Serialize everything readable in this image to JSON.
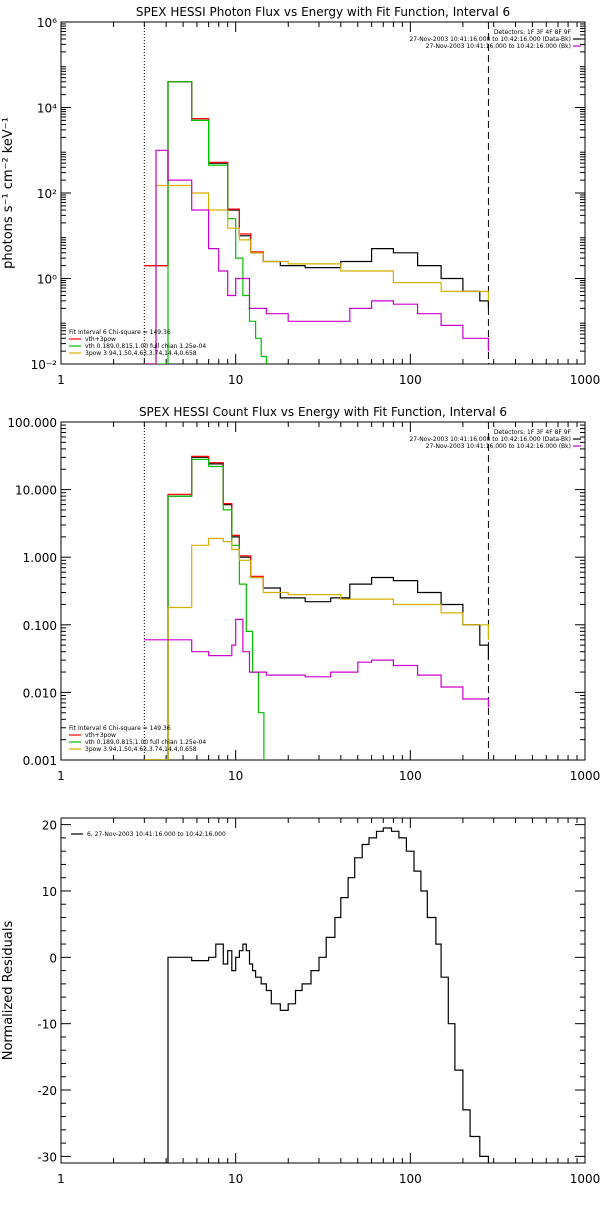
{
  "chart_data": [
    {
      "type": "line",
      "title": "SPEX HESSI Photon Flux vs Energy with Fit Function, Interval 6",
      "ylabel": "photons s⁻¹ cm⁻² keV⁻¹",
      "xlabel": "",
      "xscale": "log",
      "yscale": "log",
      "xlim": [
        1,
        1000
      ],
      "ylim": [
        0.01,
        1000000
      ],
      "xtick_labels": [
        "1",
        "10",
        "100",
        "1000"
      ],
      "ytick_labels": [
        "10⁻²",
        "10⁰",
        "10²",
        "10⁴",
        "10⁶"
      ],
      "vlines": [
        {
          "x": 3,
          "style": "dotted"
        },
        {
          "x": 280,
          "style": "dashed"
        }
      ],
      "legend_top_right": [
        "Detectors: 1F 3F 4F 8F 9F",
        "27-Nov-2003 10:41:16.000 to 10:42:16.000 (Data-Bk)",
        "27-Nov-2003 10:41:16.000 to 10:42:16.000 (Bk)"
      ],
      "legend_bottom_left": {
        "header": "Fit Interval 6   Chi-square = 149.36",
        "entries": [
          "vth+3pow",
          "vth 0.189,0.815,1.00  full chian 1.25e-04",
          "3pow 3.94,1.50,4.63,3.74,14.4,0.658"
        ]
      },
      "series": [
        {
          "role": "data-bk",
          "color": "#000000",
          "x": [
            3.0,
            4.1,
            5.6,
            7.0,
            9.0,
            10.5,
            12.2,
            14.4,
            18.0,
            25.0,
            40.0,
            60.0,
            80.0,
            110.0,
            150.0,
            200.0,
            250.0,
            280.0
          ],
          "y": [
            2.0,
            40000,
            5000,
            500,
            40,
            10,
            4.0,
            2.5,
            2.0,
            1.8,
            2.5,
            5.0,
            4.0,
            2.0,
            1.0,
            0.5,
            0.3,
            0.2
          ]
        },
        {
          "role": "model-total",
          "color": "#ff0000",
          "x": [
            3.0,
            4.1,
            5.6,
            7.0,
            9.0,
            10.5,
            12.2,
            14.4
          ],
          "y": [
            2.0,
            40000,
            5500,
            520,
            42,
            11,
            4.2,
            2.5
          ]
        },
        {
          "role": "model-thermal",
          "color": "#00c000",
          "x": [
            3.0,
            4.1,
            5.6,
            7.0,
            9.0,
            10.0,
            11.0,
            12.0,
            13.0,
            14.0,
            15.0
          ],
          "y": [
            0.01,
            40000,
            5000,
            450,
            25,
            3.0,
            0.4,
            0.1,
            0.04,
            0.015,
            0.01
          ]
        },
        {
          "role": "model-powerlaw",
          "color": "#d4b000",
          "x": [
            3.0,
            3.5,
            4.1,
            5.6,
            7.0,
            9.0,
            10.5,
            12.2,
            14.4,
            20.0,
            40.0,
            80.0,
            150.0,
            280.0
          ],
          "y": [
            0.01,
            150,
            150,
            100,
            40,
            15,
            8.0,
            4.0,
            2.5,
            2.2,
            1.5,
            0.8,
            0.5,
            0.3
          ]
        },
        {
          "role": "background",
          "color": "#cc00cc",
          "x": [
            3.0,
            3.5,
            4.1,
            5.6,
            7.0,
            8.0,
            9.0,
            10.0,
            12.0,
            15.0,
            20.0,
            30.0,
            45.0,
            60.0,
            80.0,
            110.0,
            150.0,
            200.0,
            280.0
          ],
          "y": [
            0.01,
            1000,
            200,
            40,
            5.0,
            1.5,
            0.4,
            1.0,
            0.2,
            0.15,
            0.1,
            0.1,
            0.2,
            0.3,
            0.25,
            0.15,
            0.08,
            0.04,
            0.02
          ]
        }
      ]
    },
    {
      "type": "line",
      "title": "SPEX HESSI Count Flux vs Energy with Fit Function, Interval 6",
      "xlabel": "",
      "ylabel": "",
      "xscale": "log",
      "yscale": "log",
      "xlim": [
        1,
        1000
      ],
      "ylim": [
        0.001,
        100
      ],
      "xtick_labels": [
        "1",
        "10",
        "100",
        "1000"
      ],
      "ytick_labels": [
        "0.001",
        "0.010",
        "0.100",
        "1.000",
        "10.000",
        "100.000"
      ],
      "vlines": [
        {
          "x": 3,
          "style": "dotted"
        },
        {
          "x": 280,
          "style": "dashed"
        }
      ],
      "legend_top_right": [
        "Detectors: 1F 3F 4F 8F 9F",
        "27-Nov-2003 10:41:16.000 to 10:42:16.000 (Data-Bk)",
        "27-Nov-2003 10:41:16.000 to 10:42:16.000 (Bk)"
      ],
      "legend_bottom_left": {
        "header": "Fit Interval 6   Chi-square = 149.36",
        "entries": [
          "vth+3pow",
          "vth 0.189,0.815,1.00  full chian 1.25e-04",
          "3pow 3.94,1.50,4.63,3.74,14.4,0.658"
        ]
      },
      "series": [
        {
          "role": "data-bk",
          "color": "#000000",
          "x": [
            3.0,
            4.1,
            5.6,
            7.0,
            8.5,
            9.5,
            10.5,
            12.2,
            14.4,
            18.0,
            25.0,
            35.0,
            45.0,
            60.0,
            80.0,
            110.0,
            150.0,
            200.0,
            250.0,
            280.0
          ],
          "y": [
            0.001,
            8.0,
            30.0,
            24.0,
            6.0,
            2.0,
            1.0,
            0.5,
            0.35,
            0.25,
            0.22,
            0.25,
            0.4,
            0.5,
            0.45,
            0.3,
            0.2,
            0.1,
            0.05,
            0.03
          ]
        },
        {
          "role": "model-total",
          "color": "#ff0000",
          "x": [
            3.0,
            4.1,
            5.6,
            7.0,
            8.5,
            9.5,
            10.5,
            12.2,
            14.4
          ],
          "y": [
            0.001,
            8.5,
            31.0,
            25.0,
            6.2,
            2.1,
            1.05,
            0.52,
            0.36
          ]
        },
        {
          "role": "model-thermal",
          "color": "#00c000",
          "x": [
            3.0,
            4.1,
            5.6,
            7.0,
            8.5,
            9.5,
            10.5,
            11.5,
            12.5,
            13.5,
            14.5
          ],
          "y": [
            0.001,
            8.0,
            28.0,
            22.0,
            5.0,
            1.5,
            0.4,
            0.08,
            0.02,
            0.005,
            0.001
          ]
        },
        {
          "role": "model-powerlaw",
          "color": "#d4b000",
          "x": [
            3.0,
            4.1,
            5.6,
            7.0,
            8.5,
            9.5,
            10.5,
            12.2,
            14.4,
            20.0,
            40.0,
            80.0,
            150.0,
            200.0,
            280.0
          ],
          "y": [
            0.001,
            0.18,
            1.5,
            1.9,
            1.7,
            1.3,
            0.9,
            0.5,
            0.3,
            0.28,
            0.24,
            0.2,
            0.15,
            0.1,
            0.06
          ]
        },
        {
          "role": "background",
          "color": "#cc00cc",
          "x": [
            3.0,
            4.1,
            5.6,
            7.0,
            8.5,
            9.5,
            10.0,
            11.0,
            12.0,
            15.0,
            25.0,
            35.0,
            50.0,
            60.0,
            80.0,
            110.0,
            150.0,
            200.0,
            280.0
          ],
          "y": [
            0.06,
            0.06,
            0.04,
            0.035,
            0.035,
            0.05,
            0.12,
            0.04,
            0.02,
            0.018,
            0.017,
            0.02,
            0.028,
            0.03,
            0.025,
            0.018,
            0.012,
            0.008,
            0.006
          ]
        }
      ]
    },
    {
      "type": "line",
      "title": "",
      "xlabel": "",
      "ylabel": "Normalized  Residuals",
      "xscale": "log",
      "yscale": "linear",
      "xlim": [
        1,
        1000
      ],
      "ylim": [
        -31,
        21
      ],
      "xtick_labels": [
        "1",
        "10",
        "100",
        "1000"
      ],
      "ytick_labels": [
        "-30",
        "-20",
        "-10",
        "0",
        "10",
        "20"
      ],
      "legend": "6, 27-Nov-2003 10:41:16.000 to 10:42:16.000",
      "series": [
        {
          "role": "residuals",
          "color": "#000000",
          "x": [
            3.0,
            4.1,
            5.6,
            7.0,
            7.7,
            8.5,
            9.0,
            9.5,
            10.0,
            10.5,
            11.0,
            11.5,
            12.0,
            12.5,
            13.0,
            14.0,
            15.0,
            16.0,
            18.0,
            20.0,
            22.0,
            24.0,
            27.0,
            30.0,
            33.0,
            37.0,
            40.0,
            44.0,
            48.0,
            53.0,
            58.0,
            64.0,
            70.0,
            78.0,
            86.0,
            95.0,
            105.0,
            115.0,
            125.0,
            140.0,
            150.0,
            165.0,
            180.0,
            200.0,
            220.0,
            250.0,
            280.0
          ],
          "y": [
            -31,
            0,
            -0.5,
            0,
            2,
            -1,
            1,
            -2,
            0,
            1,
            2,
            1,
            -1,
            -2,
            -3,
            -4,
            -5,
            -7,
            -8,
            -7,
            -5,
            -4,
            -2,
            0,
            3,
            6,
            9,
            12,
            15,
            17,
            18,
            19,
            19.5,
            19,
            18,
            16,
            13,
            10,
            6,
            2,
            -3,
            -10,
            -17,
            -23,
            -27,
            -30,
            -31
          ]
        }
      ]
    }
  ]
}
